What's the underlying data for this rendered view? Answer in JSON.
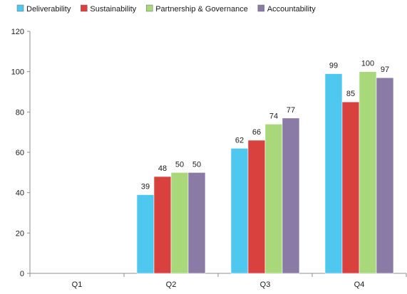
{
  "chart_data": {
    "type": "bar",
    "title": "",
    "xlabel": "",
    "ylabel": "",
    "categories": [
      "Q1",
      "Q2",
      "Q3",
      "Q4"
    ],
    "ylim": [
      0,
      120
    ],
    "yticks": [
      0,
      20,
      40,
      60,
      80,
      100,
      120
    ],
    "grid": false,
    "legend_position": "top",
    "series": [
      {
        "name": "Deliverability",
        "color": "#4fc8f0",
        "values": [
          null,
          39,
          62,
          99
        ]
      },
      {
        "name": "Sustainability",
        "color": "#d9413e",
        "values": [
          null,
          48,
          66,
          85
        ]
      },
      {
        "name": "Partnership & Governance",
        "color": "#a8d87a",
        "values": [
          null,
          50,
          74,
          100
        ]
      },
      {
        "name": "Accountability",
        "color": "#8a7aa6",
        "values": [
          null,
          50,
          77,
          97
        ]
      }
    ],
    "data_labels": [
      [
        null,
        "39",
        "62",
        "99"
      ],
      [
        null,
        "48",
        "66",
        "85"
      ],
      [
        null,
        "50",
        "74",
        "100"
      ],
      [
        null,
        "50",
        "77",
        "97"
      ]
    ]
  }
}
